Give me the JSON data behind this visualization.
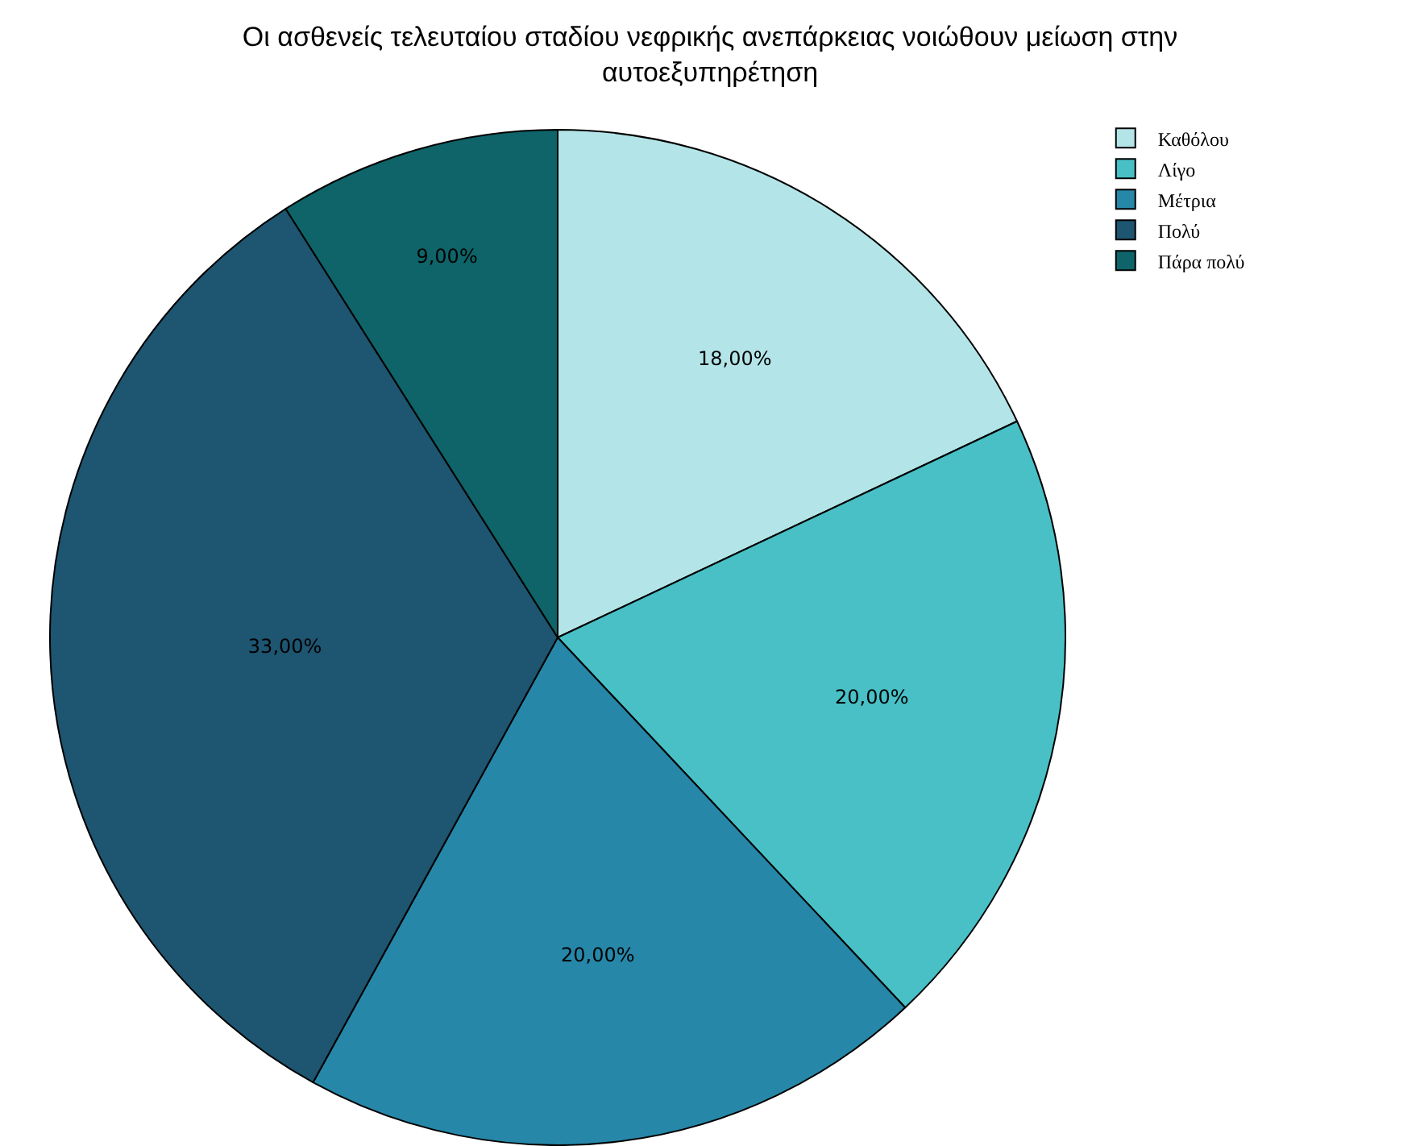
{
  "chart_data": {
    "type": "pie",
    "title": "Οι ασθενείς τελευταίου σταδίου νεφρικής ανεπάρκειας νοιώθουν μείωση στην αυτοεξυπηρέτηση",
    "categories": [
      "Καθόλου",
      "Λίγο",
      "Μέτρια",
      "Πολύ",
      "Πάρα πολύ"
    ],
    "values": [
      18,
      20,
      20,
      33,
      9
    ],
    "value_labels": [
      "18,00%",
      "20,00%",
      "20,00%",
      "33,00%",
      "9,00%"
    ],
    "colors": [
      "#b3e5e8",
      "#48c0c6",
      "#2687a8",
      "#1e5570",
      "#0e6468"
    ],
    "legend": "top right"
  }
}
